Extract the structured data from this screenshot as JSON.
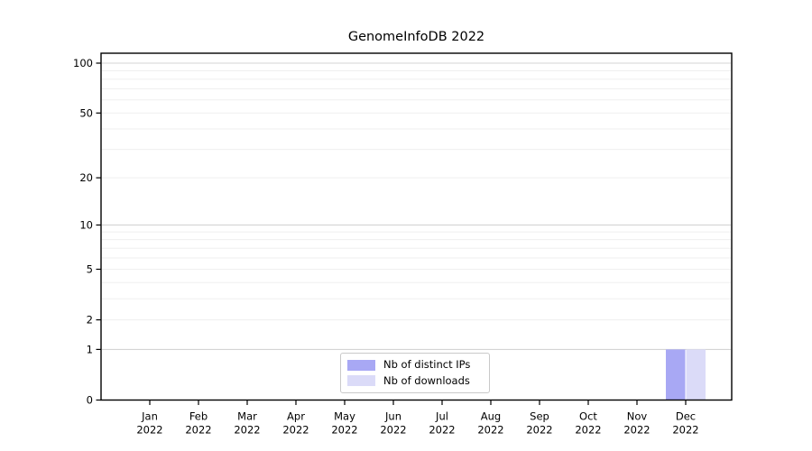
{
  "chart_data": {
    "type": "bar",
    "title": "GenomeInfoDB 2022",
    "categories": [
      "Jan",
      "Feb",
      "Mar",
      "Apr",
      "May",
      "Jun",
      "Jul",
      "Aug",
      "Sep",
      "Oct",
      "Nov",
      "Dec"
    ],
    "year_label": "2022",
    "series": [
      {
        "name": "Nb of distinct IPs",
        "color": "#a8a8f4",
        "values": [
          0,
          0,
          0,
          0,
          0,
          0,
          0,
          0,
          0,
          0,
          0,
          1
        ]
      },
      {
        "name": "Nb of downloads",
        "color": "#dbdbf8",
        "values": [
          0,
          0,
          0,
          0,
          0,
          0,
          0,
          0,
          0,
          0,
          0,
          1
        ]
      }
    ],
    "yticks": [
      0,
      1,
      2,
      5,
      10,
      20,
      50,
      100
    ],
    "minor_gridlines": [
      2,
      3,
      4,
      5,
      6,
      7,
      8,
      9,
      20,
      30,
      40,
      50,
      60,
      70,
      80,
      90
    ],
    "major_gridlines": [
      1,
      10,
      100
    ],
    "scale": "log1p",
    "ylim": [
      0,
      100
    ],
    "xlabel": "",
    "ylabel": "",
    "grid": true,
    "legend_position": "lower center"
  },
  "colors": {
    "background": "#ffffff",
    "frame": "#000000",
    "grid_minor": "#efefef",
    "grid_major": "#d4d4d4",
    "text": "#000000",
    "legend_border": "#c9c9c9"
  }
}
